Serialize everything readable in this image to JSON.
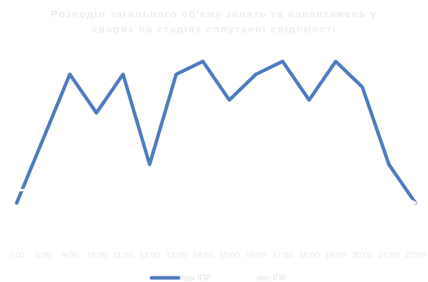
{
  "chart_data": {
    "type": "line",
    "title_lines": [
      "Розподіл загального об'єму занять та навантажень у",
      "хворих на стадіях сплутаної свідомості"
    ],
    "categories": [
      "7:00",
      "8:00",
      "9:00",
      "10:00",
      "11:00",
      "12:00",
      "13:00",
      "14:00",
      "15:00",
      "16:00",
      "17:00",
      "18:00",
      "19:00",
      "20:00",
      "21:00",
      "22:00"
    ],
    "series": [
      {
        "name": "max ІПР",
        "color": "#4f7bbf",
        "values": [
          0,
          1,
          2,
          1.4,
          2,
          0.6,
          2,
          2.2,
          1.6,
          2,
          2.2,
          1.6,
          2.2,
          1.8,
          0.6,
          0
        ]
      },
      {
        "name": "min ІПР",
        "color": "#ffffff",
        "values": [
          0.2,
          0.2,
          0.2,
          0.2,
          0.2,
          0.2,
          0.2,
          0.2,
          0.2,
          0.2,
          0.2,
          0.2,
          0.2,
          0.2,
          0.2,
          0
        ]
      }
    ],
    "xlabel": "",
    "ylabel": "",
    "ylim": [
      0,
      2.4
    ],
    "grid": false,
    "legend_position": "bottom"
  }
}
